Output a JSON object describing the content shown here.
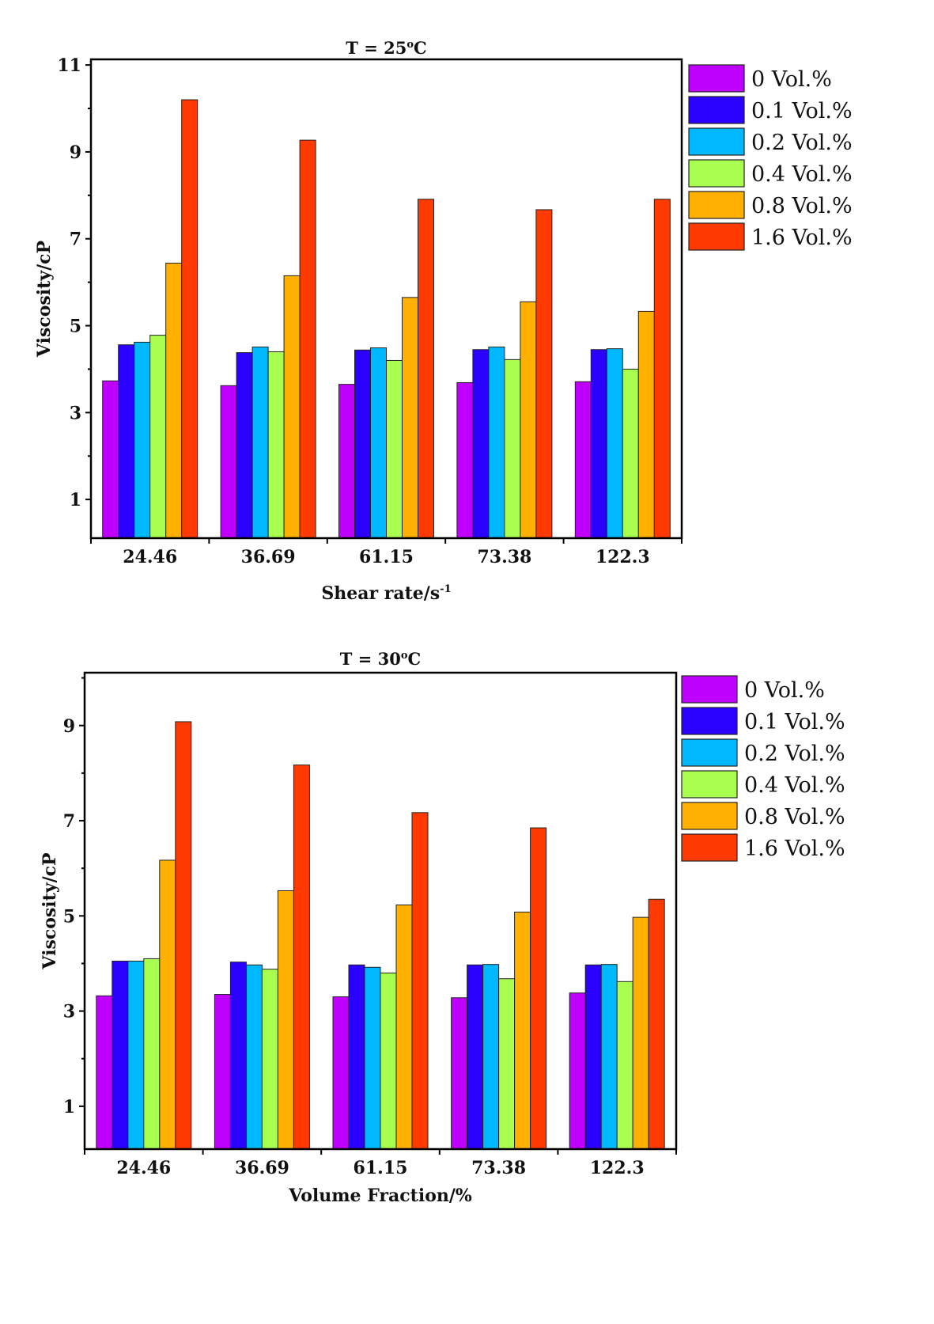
{
  "chart_data": [
    {
      "type": "bar",
      "title": "T = 25",
      "title_sup": "o",
      "title_unit": "C",
      "xlabel": "Shear rate/s",
      "xlabel_sup": "-1",
      "ylabel": "Viscosity/cP",
      "ylim": [
        0.11,
        11.13
      ],
      "yticks": [
        1,
        3,
        5,
        7,
        9,
        11
      ],
      "categories": [
        "24.46",
        "36.69",
        "61.15",
        "73.38",
        "122.3"
      ],
      "legend_position": "outside-right-top",
      "series": [
        {
          "name": "0 Vol.%",
          "color": "#c000ff",
          "values": [
            3.73,
            3.62,
            3.65,
            3.69,
            3.71
          ]
        },
        {
          "name": "0.1 Vol.%",
          "color": "#2a00ff",
          "values": [
            4.56,
            4.38,
            4.44,
            4.45,
            4.45
          ]
        },
        {
          "name": "0.2 Vol.%",
          "color": "#00b8ff",
          "values": [
            4.62,
            4.51,
            4.49,
            4.51,
            4.47
          ]
        },
        {
          "name": "0.4 Vol.%",
          "color": "#a8ff50",
          "values": [
            4.78,
            4.4,
            4.2,
            4.22,
            4.0
          ]
        },
        {
          "name": "0.8 Vol.%",
          "color": "#ffb000",
          "values": [
            6.44,
            6.15,
            5.65,
            5.55,
            5.33
          ]
        },
        {
          "name": "1.6 Vol.%",
          "color": "#ff3a00",
          "values": [
            10.2,
            9.27,
            7.91,
            7.67,
            7.91
          ]
        }
      ]
    },
    {
      "type": "bar",
      "title": "T = 30",
      "title_sup": "o",
      "title_unit": "C",
      "xlabel": "Volume Fraction/%",
      "xlabel_sup": "",
      "ylabel": "Viscosity/cP",
      "ylim": [
        0.1,
        10.11
      ],
      "yticks": [
        1,
        3,
        5,
        7,
        9
      ],
      "categories": [
        "24.46",
        "36.69",
        "61.15",
        "73.38",
        "122.3"
      ],
      "legend_position": "outside-right-top",
      "series": [
        {
          "name": "0 Vol.%",
          "color": "#c000ff",
          "values": [
            3.32,
            3.35,
            3.3,
            3.28,
            3.38
          ]
        },
        {
          "name": "0.1 Vol.%",
          "color": "#2a00ff",
          "values": [
            4.05,
            4.03,
            3.97,
            3.97,
            3.97
          ]
        },
        {
          "name": "0.2 Vol.%",
          "color": "#00b8ff",
          "values": [
            4.05,
            3.97,
            3.92,
            3.98,
            3.98
          ]
        },
        {
          "name": "0.4 Vol.%",
          "color": "#a8ff50",
          "values": [
            4.1,
            3.88,
            3.8,
            3.68,
            3.62
          ]
        },
        {
          "name": "0.8 Vol.%",
          "color": "#ffb000",
          "values": [
            6.17,
            5.53,
            5.23,
            5.08,
            4.97
          ]
        },
        {
          "name": "1.6 Vol.%",
          "color": "#ff3a00",
          "values": [
            9.08,
            8.17,
            7.17,
            6.85,
            5.35
          ]
        }
      ]
    }
  ]
}
